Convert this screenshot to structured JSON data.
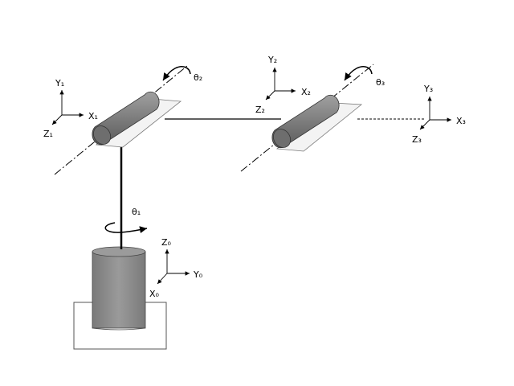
{
  "frames": {
    "f0": {
      "x": "X₀",
      "y": "Y₀",
      "z": "Z₀"
    },
    "f1": {
      "x": "X₁",
      "y": "Y₁",
      "z": "Z₁"
    },
    "f2": {
      "x": "X₂",
      "y": "Y₂",
      "z": "Z₂"
    },
    "f3": {
      "x": "X₃",
      "y": "Y₃",
      "z": "Z₃"
    }
  },
  "joints": {
    "theta1": "θ₁",
    "theta2": "θ₂",
    "theta3": "θ₃"
  },
  "colors": {
    "body": "#8c8c8c",
    "body_dark": "#6a6a6a",
    "plate": "#f2f2f2",
    "line": "#000000"
  }
}
